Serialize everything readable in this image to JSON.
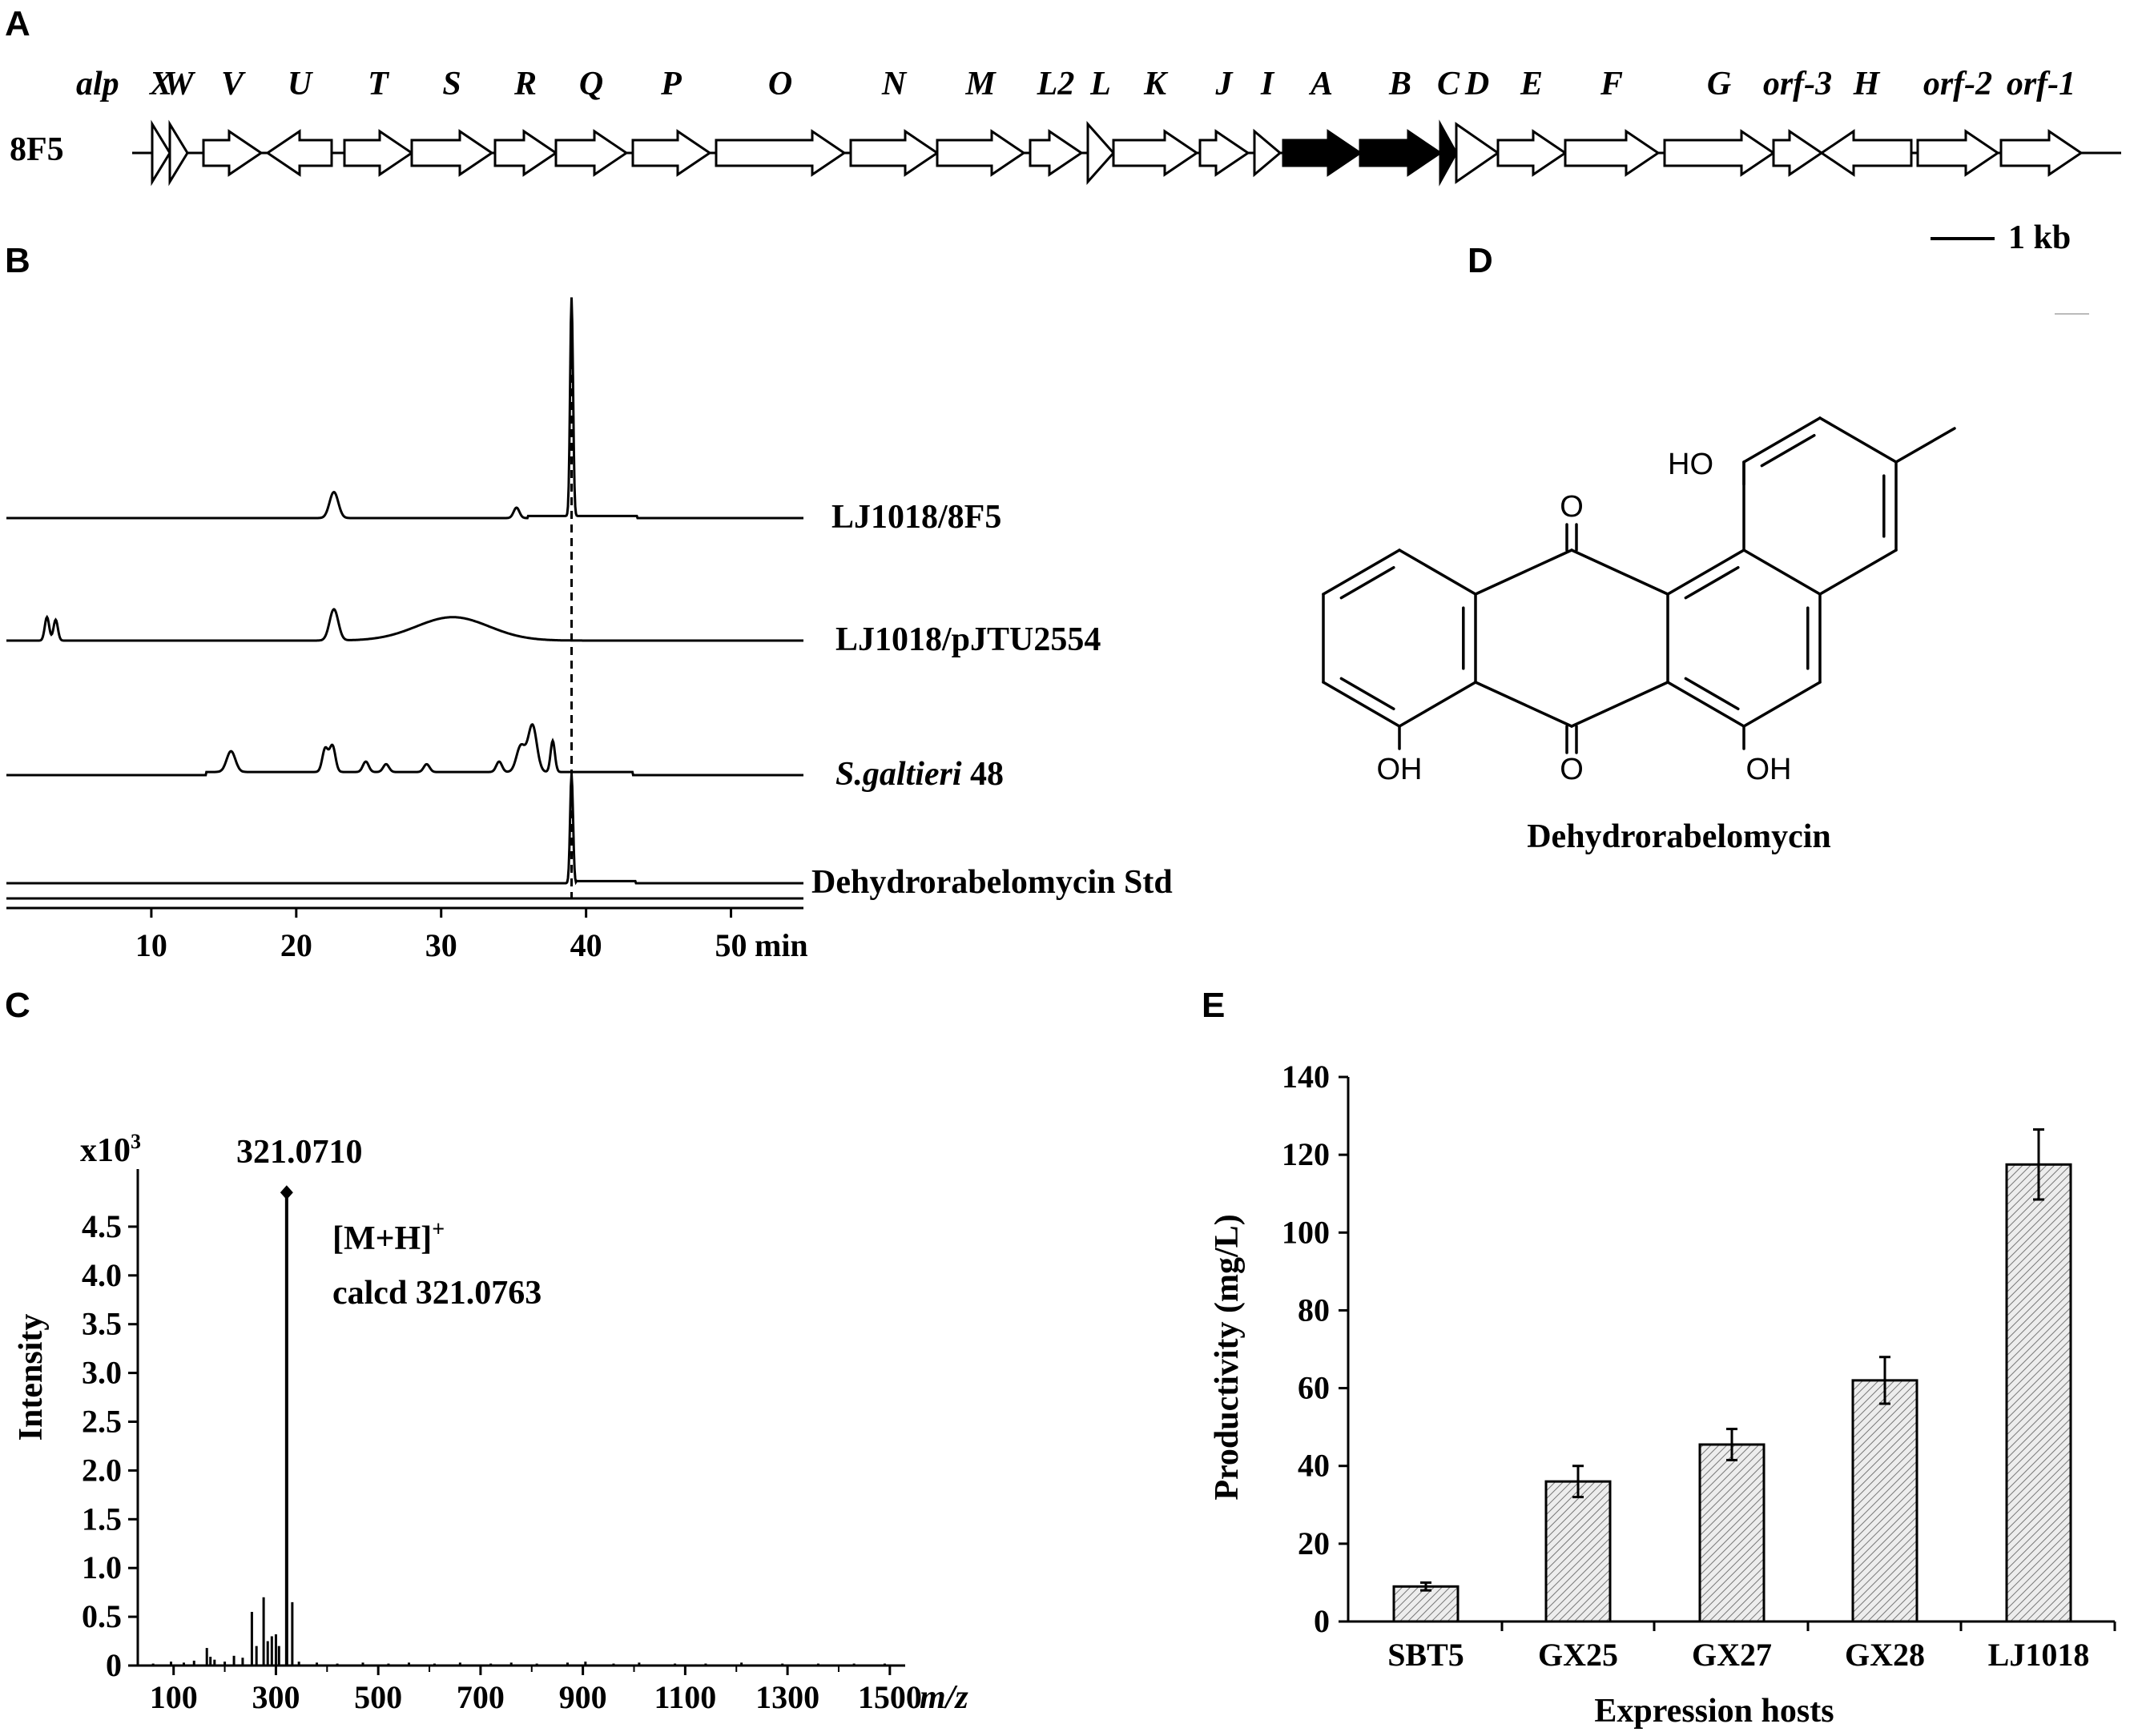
{
  "panels": {
    "a": "A",
    "b": "B",
    "c": "C",
    "d": "D",
    "e": "E"
  },
  "chart_data": [
    {
      "panel": "A",
      "type": "gene_cluster",
      "cluster_label": "8F5",
      "scale_bar": "1 kb",
      "cluster_prefix": "alp",
      "genes": [
        {
          "name": "X",
          "x0": 0.0,
          "x1": 0.55,
          "dir": "R",
          "fill": "white",
          "tall": true
        },
        {
          "name": "W",
          "x0": 0.55,
          "x1": 1.1,
          "dir": "R",
          "fill": "white",
          "tall": true
        },
        {
          "name": "V",
          "x0": 1.6,
          "x1": 3.4,
          "dir": "R",
          "fill": "white"
        },
        {
          "name": "U",
          "x0": 3.6,
          "x1": 5.6,
          "dir": "L",
          "fill": "white"
        },
        {
          "name": "T",
          "x0": 6.0,
          "x1": 8.1,
          "dir": "R",
          "fill": "white"
        },
        {
          "name": "S",
          "x0": 8.1,
          "x1": 10.6,
          "dir": "R",
          "fill": "white"
        },
        {
          "name": "R",
          "x0": 10.7,
          "x1": 12.6,
          "dir": "R",
          "fill": "white"
        },
        {
          "name": "Q",
          "x0": 12.6,
          "x1": 14.8,
          "dir": "R",
          "fill": "white"
        },
        {
          "name": "P",
          "x0": 15.0,
          "x1": 17.4,
          "dir": "R",
          "fill": "white"
        },
        {
          "name": "O",
          "x0": 17.6,
          "x1": 21.6,
          "dir": "R",
          "fill": "white"
        },
        {
          "name": "N",
          "x0": 21.8,
          "x1": 24.5,
          "dir": "R",
          "fill": "white"
        },
        {
          "name": "M",
          "x0": 24.5,
          "x1": 27.2,
          "dir": "R",
          "fill": "white"
        },
        {
          "name": "L2",
          "x0": 27.4,
          "x1": 29.0,
          "dir": "R",
          "fill": "white"
        },
        {
          "name": "L",
          "x0": 29.2,
          "x1": 30.0,
          "dir": "R",
          "fill": "white",
          "tall": true
        },
        {
          "name": "K",
          "x0": 30.0,
          "x1": 32.6,
          "dir": "R",
          "fill": "white"
        },
        {
          "name": "J",
          "x0": 32.7,
          "x1": 34.2,
          "dir": "R",
          "fill": "white"
        },
        {
          "name": "I",
          "x0": 34.4,
          "x1": 35.2,
          "dir": "R",
          "fill": "white"
        },
        {
          "name": "A",
          "x0": 35.3,
          "x1": 37.7,
          "dir": "R",
          "fill": "black"
        },
        {
          "name": "B",
          "x0": 37.7,
          "x1": 40.2,
          "dir": "R",
          "fill": "black"
        },
        {
          "name": "C",
          "x0": 40.2,
          "x1": 40.7,
          "dir": "R",
          "fill": "black",
          "tall": true
        },
        {
          "name": "D",
          "x0": 40.7,
          "x1": 42.0,
          "dir": "R",
          "fill": "white",
          "tall": true
        },
        {
          "name": "E",
          "x0": 42.0,
          "x1": 44.1,
          "dir": "R",
          "fill": "white"
        },
        {
          "name": "F",
          "x0": 44.1,
          "x1": 47.0,
          "dir": "R",
          "fill": "white"
        },
        {
          "name": "G",
          "x0": 47.2,
          "x1": 50.6,
          "dir": "R",
          "fill": "white"
        },
        {
          "name": "orf-3",
          "x0": 50.6,
          "x1": 52.1,
          "dir": "R",
          "fill": "white"
        },
        {
          "name": "H",
          "x0": 52.1,
          "x1": 54.9,
          "dir": "L",
          "fill": "white"
        },
        {
          "name": "orf-2",
          "x0": 55.1,
          "x1": 57.6,
          "dir": "R",
          "fill": "white"
        },
        {
          "name": "orf-1",
          "x0": 57.7,
          "x1": 60.2,
          "dir": "R",
          "fill": "white"
        }
      ]
    },
    {
      "panel": "B",
      "type": "line",
      "xlabel": "min",
      "xlim": [
        0,
        55
      ],
      "xticks": [
        10,
        20,
        30,
        40,
        50
      ],
      "reference_line_x": 39,
      "series": [
        {
          "name": "LJ1018/8F5",
          "baseline": 0.08,
          "peaks": [
            {
              "t": 22.6,
              "h": 0.05,
              "w": 0.3
            },
            {
              "t": 35.2,
              "h": 0.02,
              "w": 0.2
            },
            {
              "t": 39.0,
              "h": 0.42,
              "w": 0.1
            }
          ]
        },
        {
          "name": "LJ1018/pJTU2554",
          "baseline": 0.0,
          "peaks": [
            {
              "t": 2.8,
              "h": 0.045,
              "w": 0.15
            },
            {
              "t": 3.4,
              "h": 0.04,
              "w": 0.15
            },
            {
              "t": 22.6,
              "h": 0.06,
              "w": 0.3
            },
            {
              "t": 30.8,
              "h": 0.045,
              "w": 2.5
            }
          ]
        },
        {
          "name": "S.galtieri 48",
          "italic_prefix": "S.galtieri",
          "suffix": " 48",
          "baseline": 0.0,
          "peaks": [
            {
              "t": 15.5,
              "h": 0.04,
              "w": 0.3
            },
            {
              "t": 22.0,
              "h": 0.045,
              "w": 0.2
            },
            {
              "t": 22.5,
              "h": 0.05,
              "w": 0.2
            },
            {
              "t": 24.8,
              "h": 0.02,
              "w": 0.2
            },
            {
              "t": 26.2,
              "h": 0.015,
              "w": 0.2
            },
            {
              "t": 29.0,
              "h": 0.015,
              "w": 0.2
            },
            {
              "t": 34.0,
              "h": 0.02,
              "w": 0.2
            },
            {
              "t": 35.5,
              "h": 0.05,
              "w": 0.3
            },
            {
              "t": 36.3,
              "h": 0.09,
              "w": 0.3
            },
            {
              "t": 37.7,
              "h": 0.06,
              "w": 0.15
            }
          ]
        },
        {
          "name": "Dehydrorabelomycin   Std",
          "baseline": 0.0,
          "peaks": [
            {
              "t": 39.0,
              "h": 0.21,
              "w": 0.1
            }
          ]
        }
      ]
    },
    {
      "panel": "C",
      "type": "bar",
      "ylabel": "Intensity",
      "yunit": "x10",
      "yunit_exp": "3",
      "xlabel": "m/z",
      "ylim": [
        0,
        5
      ],
      "yticks": [
        "0",
        "0.5",
        "1.0",
        "1.5",
        "2.0",
        "2.5",
        "3.0",
        "3.5",
        "4.0",
        "4.5"
      ],
      "xticks": [
        100,
        300,
        500,
        700,
        900,
        1100,
        1300,
        1500
      ],
      "xlim": [
        30,
        1530
      ],
      "peak_label": "321.0710",
      "annotation_ion": "[M+H]",
      "annotation_ion_sup": "+",
      "annotation_calcd": "calcd   321.0763",
      "peaks": [
        {
          "mz": 60,
          "i": 0.02
        },
        {
          "mz": 95,
          "i": 0.04
        },
        {
          "mz": 120,
          "i": 0.03
        },
        {
          "mz": 140,
          "i": 0.05
        },
        {
          "mz": 165,
          "i": 0.18
        },
        {
          "mz": 172,
          "i": 0.09
        },
        {
          "mz": 180,
          "i": 0.06
        },
        {
          "mz": 200,
          "i": 0.04
        },
        {
          "mz": 218,
          "i": 0.1
        },
        {
          "mz": 235,
          "i": 0.08
        },
        {
          "mz": 253,
          "i": 0.55
        },
        {
          "mz": 262,
          "i": 0.2
        },
        {
          "mz": 276,
          "i": 0.7
        },
        {
          "mz": 284,
          "i": 0.25
        },
        {
          "mz": 292,
          "i": 0.3
        },
        {
          "mz": 300,
          "i": 0.32
        },
        {
          "mz": 306,
          "i": 0.2
        },
        {
          "mz": 321,
          "i": 4.85
        },
        {
          "mz": 332,
          "i": 0.65
        },
        {
          "mz": 345,
          "i": 0.04
        },
        {
          "mz": 380,
          "i": 0.03
        },
        {
          "mz": 420,
          "i": 0.02
        },
        {
          "mz": 470,
          "i": 0.03
        },
        {
          "mz": 520,
          "i": 0.02
        },
        {
          "mz": 560,
          "i": 0.03
        },
        {
          "mz": 610,
          "i": 0.02
        },
        {
          "mz": 660,
          "i": 0.03
        },
        {
          "mz": 720,
          "i": 0.02
        },
        {
          "mz": 760,
          "i": 0.03
        },
        {
          "mz": 810,
          "i": 0.02
        },
        {
          "mz": 870,
          "i": 0.03
        },
        {
          "mz": 905,
          "i": 0.04
        },
        {
          "mz": 960,
          "i": 0.02
        },
        {
          "mz": 1010,
          "i": 0.03
        },
        {
          "mz": 1080,
          "i": 0.02
        },
        {
          "mz": 1140,
          "i": 0.02
        },
        {
          "mz": 1210,
          "i": 0.03
        },
        {
          "mz": 1290,
          "i": 0.02
        },
        {
          "mz": 1360,
          "i": 0.02
        },
        {
          "mz": 1430,
          "i": 0.02
        },
        {
          "mz": 1490,
          "i": 0.02
        }
      ]
    },
    {
      "panel": "D",
      "type": "structure",
      "compound": "Dehydrorabelomycin",
      "atoms": {
        "ho": "HO",
        "oh": "OH",
        "o": "O"
      }
    },
    {
      "panel": "E",
      "type": "bar",
      "xlabel": "Expression hosts",
      "ylabel": "Productivity (mg/L)",
      "ylim": [
        0,
        140
      ],
      "yticks": [
        0,
        20,
        40,
        60,
        80,
        100,
        120,
        140
      ],
      "categories": [
        "SBT5",
        "GX25",
        "GX27",
        "GX28",
        "LJ1018"
      ],
      "values": [
        9,
        36,
        45.5,
        62,
        117.5
      ],
      "errors": [
        1,
        4,
        4,
        6,
        9
      ]
    }
  ]
}
